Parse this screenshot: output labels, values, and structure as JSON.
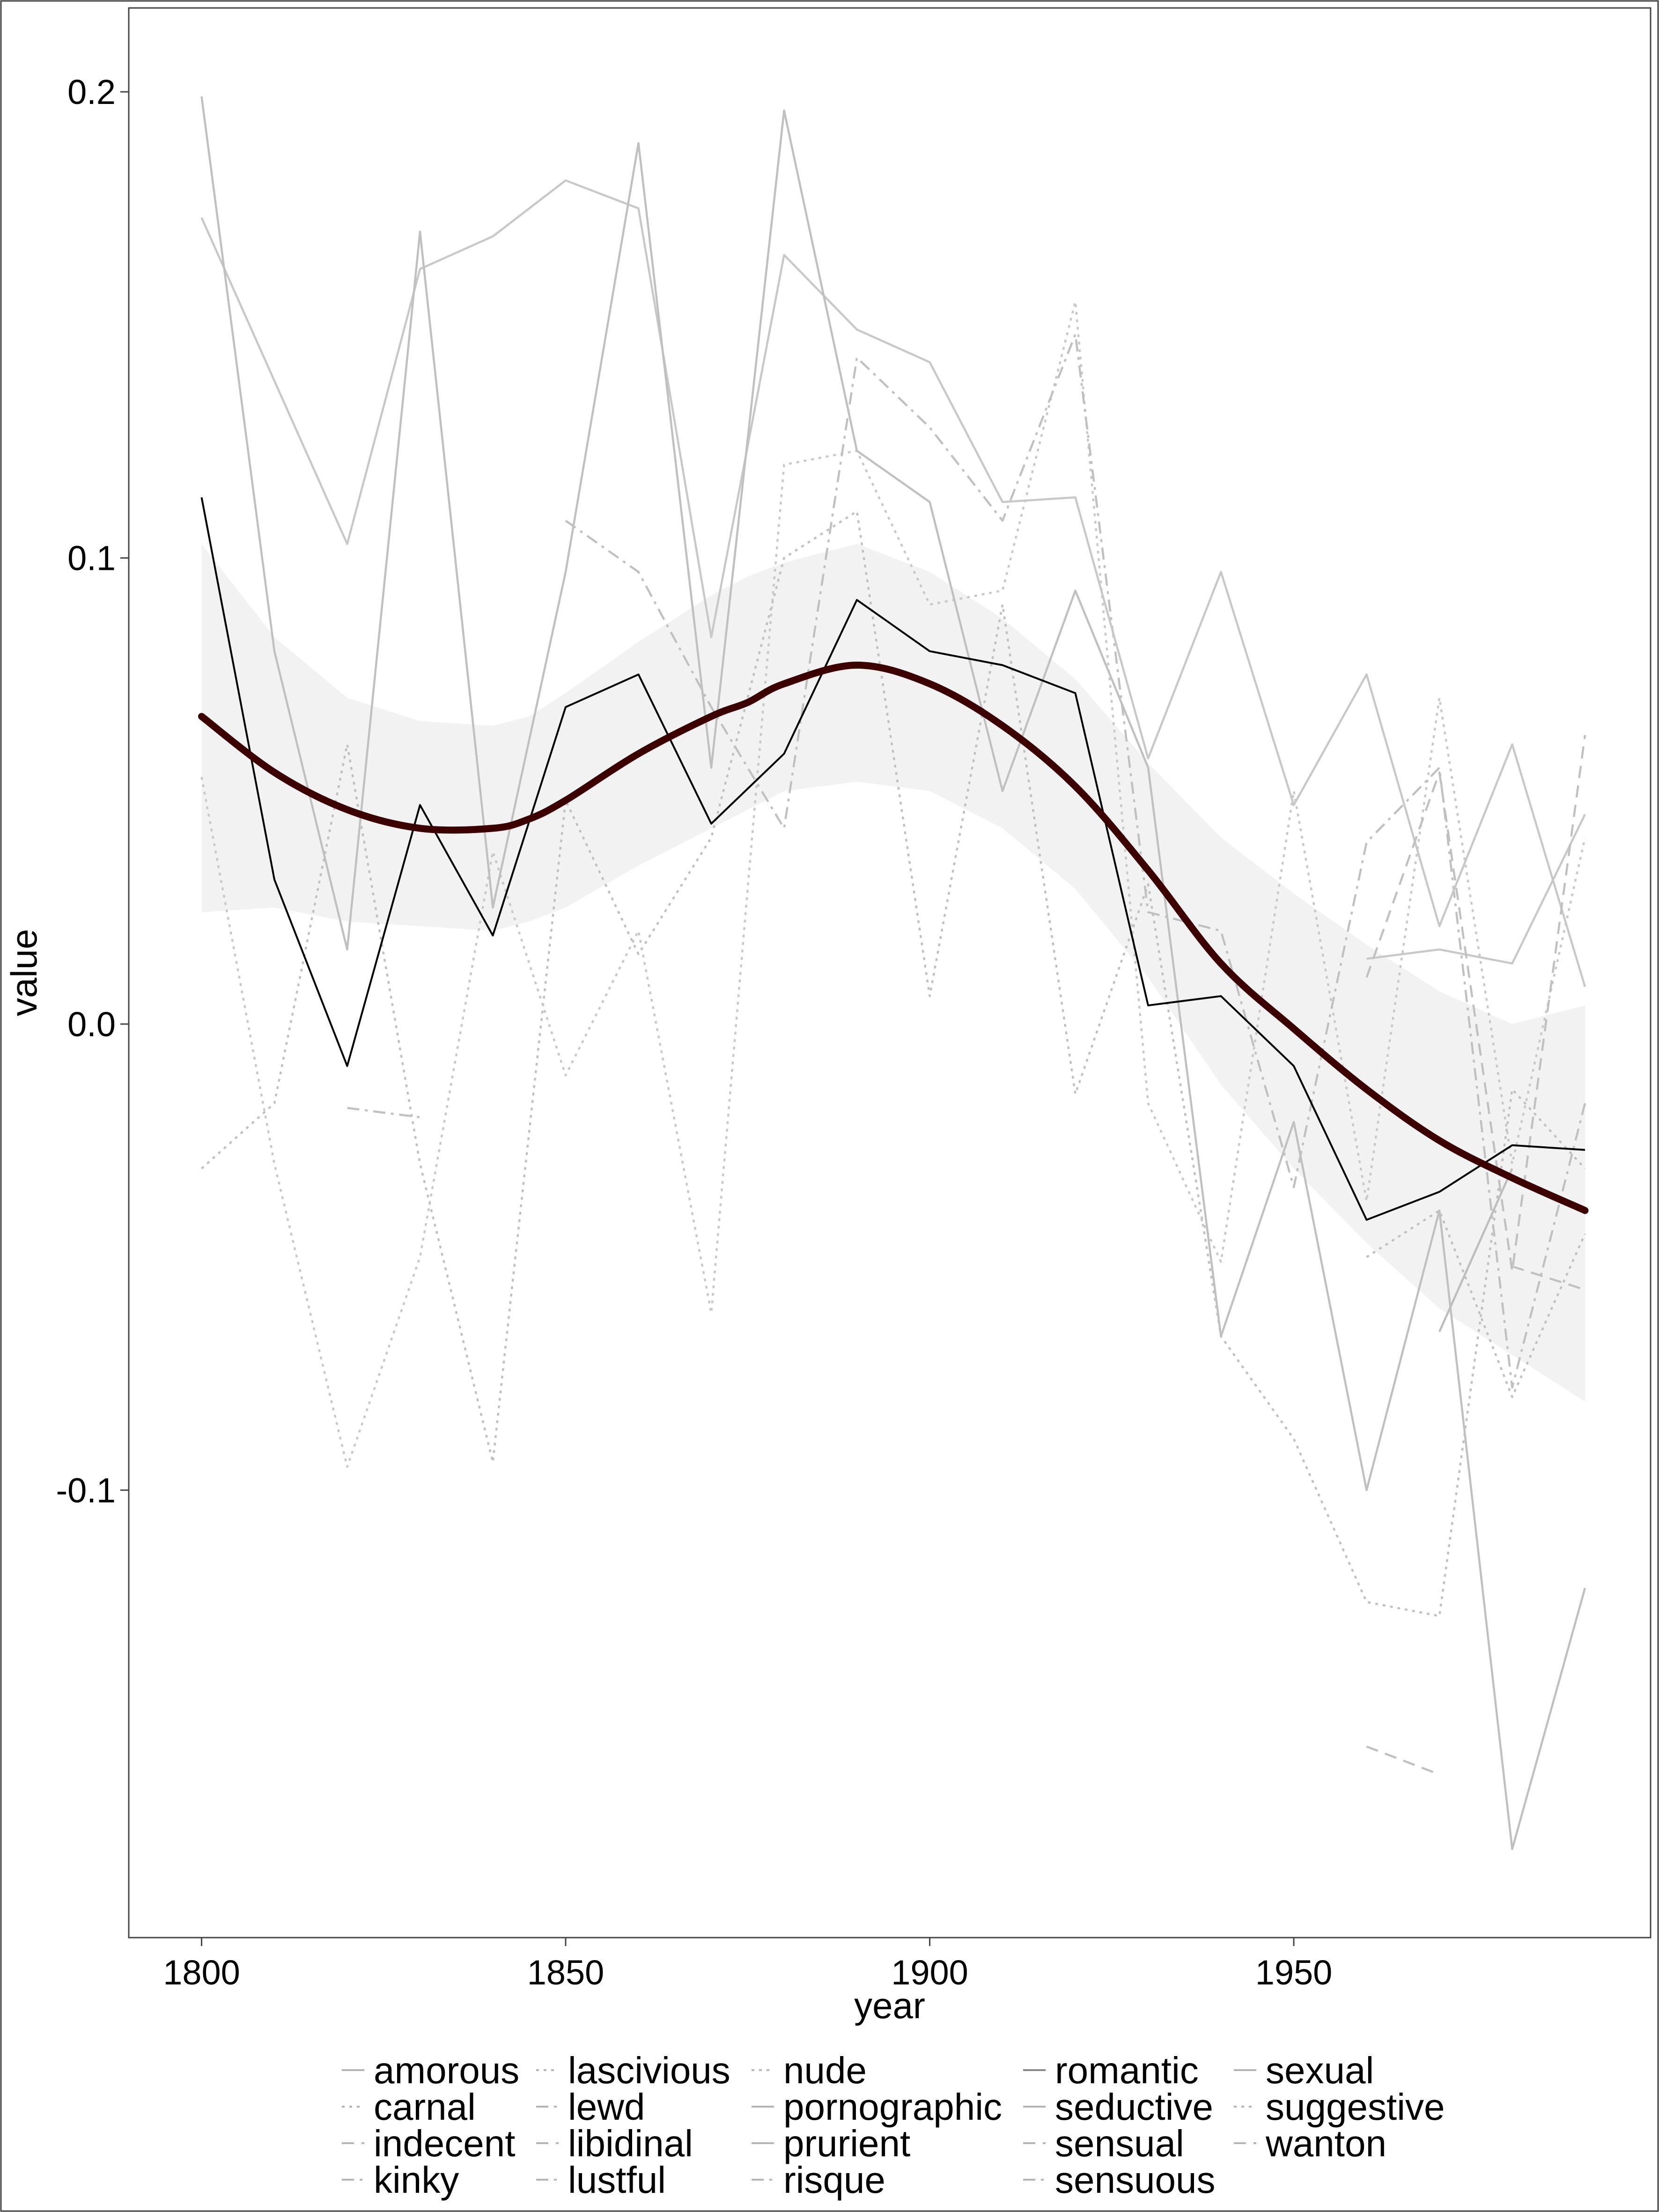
{
  "chart_data": {
    "type": "line",
    "xlabel": "year",
    "ylabel": "value",
    "xlim": [
      1790,
      1999
    ],
    "ylim": [
      -0.196,
      0.218
    ],
    "x_ticks": [
      1800,
      1850,
      1900,
      1950
    ],
    "x_tick_labels": [
      "1800",
      "1850",
      "1900",
      "1950"
    ],
    "y_ticks": [
      -0.1,
      0.0,
      0.1,
      0.2
    ],
    "y_tick_labels": [
      "-0.1",
      "0.0",
      "0.1",
      "0.2"
    ],
    "grid": false,
    "legend_position": "bottom",
    "x": [
      1800,
      1810,
      1820,
      1830,
      1840,
      1850,
      1860,
      1870,
      1880,
      1890,
      1900,
      1910,
      1920,
      1930,
      1940,
      1950,
      1960,
      1970,
      1980,
      1990
    ],
    "series": [
      {
        "name": "amorous",
        "dash": "solid",
        "color": "#bdbdbd",
        "values": [
          null,
          null,
          null,
          null,
          null,
          null,
          null,
          null,
          null,
          null,
          null,
          null,
          null,
          null,
          null,
          null,
          null,
          -0.066,
          -0.031,
          null
        ]
      },
      {
        "name": "carnal",
        "dash": "dotted",
        "color": "#c0c0c0",
        "values": [
          -0.031,
          -0.017,
          0.06,
          -0.03,
          -0.094,
          0.048,
          0.015,
          0.04,
          0.1,
          0.11,
          0.006,
          0.09,
          -0.015,
          0.03,
          -0.067,
          -0.089,
          -0.124,
          -0.127,
          -0.014,
          -0.031
        ]
      },
      {
        "name": "indecent",
        "dash": "dashed",
        "color": "#c0c0c0",
        "values": [
          null,
          null,
          null,
          null,
          null,
          null,
          null,
          null,
          null,
          null,
          null,
          null,
          null,
          null,
          null,
          null,
          null,
          null,
          -0.052,
          -0.057
        ]
      },
      {
        "name": "kinky",
        "dash": "dashdot",
        "color": "#c0c0c0",
        "values": [
          null,
          null,
          -0.018,
          -0.02,
          null,
          null,
          null,
          null,
          null,
          null,
          null,
          null,
          null,
          null,
          null,
          null,
          null,
          null,
          null,
          null
        ]
      },
      {
        "name": "lascivious",
        "dash": "dotted",
        "color": "#c8c8c8",
        "values": [
          0.053,
          -0.03,
          -0.095,
          -0.05,
          0.037,
          -0.011,
          0.02,
          -0.062,
          0.12,
          0.123,
          0.09,
          0.093,
          0.155,
          -0.017,
          -0.051,
          0.05,
          -0.038,
          0.07,
          -0.03,
          0.04
        ]
      },
      {
        "name": "lewd",
        "dash": "dashdot",
        "color": "#c0c0c0",
        "values": [
          null,
          null,
          null,
          null,
          null,
          0.108,
          0.097,
          0.068,
          0.042,
          0.143,
          0.128,
          0.108,
          0.148,
          0.024,
          0.02,
          -0.035,
          0.039,
          0.055,
          -0.078,
          -0.017
        ]
      },
      {
        "name": "libidinal",
        "dash": "dashed",
        "color": "#c0c0c0",
        "values": [
          null,
          null,
          null,
          null,
          null,
          null,
          null,
          null,
          null,
          null,
          null,
          null,
          null,
          null,
          null,
          null,
          -0.155,
          -0.161,
          null,
          null
        ]
      },
      {
        "name": "lustful",
        "dash": "dashdot",
        "color": "#c0c0c0",
        "values": [
          null,
          null,
          null,
          null,
          null,
          null,
          null,
          null,
          null,
          null,
          null,
          null,
          null,
          null,
          null,
          null,
          null,
          null,
          null,
          null
        ]
      },
      {
        "name": "nude",
        "dash": "dotted",
        "color": "#c0c0c0",
        "values": [
          null,
          null,
          null,
          null,
          null,
          null,
          null,
          null,
          null,
          null,
          null,
          null,
          null,
          null,
          null,
          null,
          -0.05,
          -0.04,
          -0.08,
          -0.045
        ]
      },
      {
        "name": "pornographic",
        "dash": "solid",
        "color": "#c8c8c8",
        "values": [
          0.173,
          0.138,
          0.103,
          0.162,
          0.169,
          0.181,
          0.175,
          0.083,
          0.165,
          0.149,
          0.142,
          0.112,
          0.113,
          0.057,
          0.097,
          0.047,
          0.075,
          0.021,
          0.06,
          0.008
        ]
      },
      {
        "name": "prurient",
        "dash": "solid",
        "color": "#c0c0c0",
        "values": [
          0.199,
          0.08,
          0.016,
          0.17,
          0.025,
          0.097,
          0.189,
          0.055,
          0.196,
          0.123,
          0.112,
          0.05,
          0.093,
          0.055,
          -0.067,
          -0.021,
          -0.1,
          -0.04,
          -0.177,
          -0.121
        ]
      },
      {
        "name": "risque",
        "dash": "dashdot",
        "color": "#c0c0c0",
        "values": [
          null,
          null,
          null,
          null,
          null,
          null,
          null,
          null,
          null,
          null,
          null,
          null,
          null,
          null,
          null,
          null,
          null,
          null,
          null,
          null
        ]
      },
      {
        "name": "romantic",
        "dash": "solid",
        "color": "#000000",
        "values": [
          0.113,
          0.031,
          -0.009,
          0.047,
          0.019,
          0.068,
          0.075,
          0.043,
          0.058,
          0.091,
          0.08,
          0.077,
          0.071,
          0.004,
          0.006,
          -0.009,
          -0.042,
          -0.036,
          -0.026,
          -0.027
        ]
      },
      {
        "name": "seductive",
        "dash": "solid",
        "color": "#c8c8c8",
        "values": [
          null,
          null,
          null,
          null,
          null,
          null,
          null,
          null,
          null,
          null,
          null,
          null,
          null,
          null,
          null,
          null,
          0.014,
          0.016,
          0.013,
          0.045
        ]
      },
      {
        "name": "sensual",
        "dash": "dashed",
        "color": "#c0c0c0",
        "values": [
          null,
          null,
          null,
          null,
          null,
          null,
          null,
          null,
          null,
          null,
          null,
          null,
          null,
          null,
          null,
          null,
          0.01,
          0.054,
          -0.053,
          0.062
        ]
      },
      {
        "name": "sensuous",
        "dash": "dashdot",
        "color": "#c0c0c0",
        "values": [
          null,
          null,
          null,
          null,
          null,
          null,
          null,
          null,
          null,
          null,
          null,
          null,
          null,
          null,
          null,
          null,
          null,
          null,
          null,
          null
        ]
      },
      {
        "name": "sexual",
        "dash": "solid",
        "color": "#c0c0c0",
        "values": [
          null,
          null,
          null,
          null,
          null,
          null,
          null,
          null,
          null,
          null,
          null,
          null,
          null,
          null,
          null,
          null,
          null,
          null,
          null,
          null
        ]
      },
      {
        "name": "suggestive",
        "dash": "dotted",
        "color": "#c0c0c0",
        "values": [
          null,
          null,
          null,
          null,
          null,
          null,
          null,
          null,
          null,
          null,
          null,
          null,
          null,
          null,
          null,
          null,
          null,
          null,
          null,
          null
        ]
      },
      {
        "name": "wanton",
        "dash": "dashed",
        "color": "#c0c0c0",
        "values": [
          null,
          null,
          null,
          null,
          null,
          null,
          null,
          null,
          null,
          null,
          null,
          null,
          null,
          null,
          null,
          null,
          null,
          null,
          null,
          null
        ]
      }
    ],
    "smooth": {
      "color": "#3d0000",
      "band_color": "#f2f2f2",
      "x": [
        1800,
        1810,
        1820,
        1830,
        1840,
        1845,
        1850,
        1860,
        1870,
        1875,
        1880,
        1890,
        1900,
        1910,
        1920,
        1930,
        1940,
        1950,
        1960,
        1970,
        1980,
        1990
      ],
      "y": [
        0.066,
        0.054,
        0.046,
        0.042,
        0.042,
        0.044,
        0.048,
        0.058,
        0.066,
        0.069,
        0.073,
        0.077,
        0.073,
        0.064,
        0.051,
        0.033,
        0.013,
        -0.001,
        -0.014,
        -0.025,
        -0.033,
        -0.04
      ],
      "lower": [
        0.024,
        0.025,
        0.022,
        0.021,
        0.02,
        0.022,
        0.025,
        0.034,
        0.042,
        0.046,
        0.05,
        0.052,
        0.05,
        0.042,
        0.029,
        0.01,
        -0.013,
        -0.031,
        -0.047,
        -0.061,
        -0.071,
        -0.081
      ],
      "upper": [
        0.103,
        0.083,
        0.07,
        0.065,
        0.064,
        0.066,
        0.071,
        0.082,
        0.092,
        0.096,
        0.099,
        0.103,
        0.097,
        0.087,
        0.074,
        0.056,
        0.04,
        0.028,
        0.017,
        0.007,
        0.0,
        0.004
      ]
    }
  },
  "legend": {
    "columns": [
      [
        "amorous",
        "carnal",
        "indecent",
        "kinky"
      ],
      [
        "lascivious",
        "lewd",
        "libidinal",
        "lustful"
      ],
      [
        "nude",
        "pornographic",
        "prurient",
        "risque"
      ],
      [
        "romantic",
        "seductive",
        "sensual",
        "sensuous"
      ],
      [
        "sexual",
        "suggestive",
        "wanton"
      ]
    ]
  }
}
